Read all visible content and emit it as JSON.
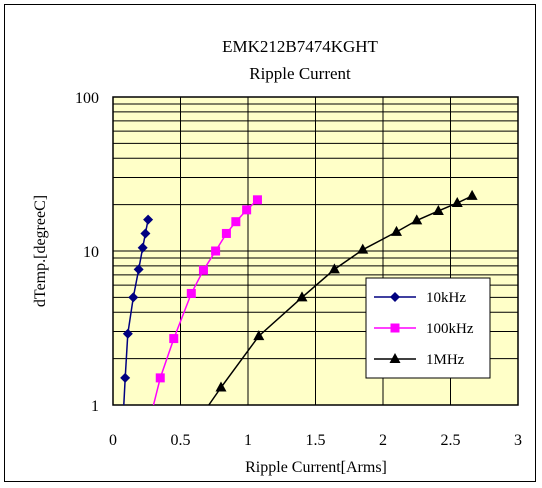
{
  "chart_data": {
    "type": "line",
    "title": "EMK212B7474KGHT",
    "subtitle": "Ripple Current",
    "xlabel": "Ripple Current[Arms]",
    "ylabel": "dTemp.[degreeC]",
    "xlim": [
      0,
      3
    ],
    "ylim": [
      1,
      100
    ],
    "yscale": "log",
    "x_ticks": [
      "0",
      "0.5",
      "1",
      "1.5",
      "2",
      "2.5",
      "3"
    ],
    "y_ticks": [
      "1",
      "10",
      "100"
    ],
    "grid": true,
    "legend_position": "right-middle",
    "plot_background": "#ffffc8",
    "series": [
      {
        "name": "10kHz",
        "color": "#000080",
        "marker": "diamond",
        "points": [
          [
            0.09,
            1.5
          ],
          [
            0.11,
            2.9
          ],
          [
            0.15,
            5.0
          ],
          [
            0.19,
            7.6
          ],
          [
            0.22,
            10.5
          ],
          [
            0.24,
            13.0
          ],
          [
            0.26,
            16.0
          ]
        ],
        "curve_start": [
          0.08,
          1.0
        ]
      },
      {
        "name": "100kHz",
        "color": "#ff00ff",
        "marker": "square",
        "points": [
          [
            0.35,
            1.5
          ],
          [
            0.45,
            2.7
          ],
          [
            0.58,
            5.3
          ],
          [
            0.67,
            7.5
          ],
          [
            0.76,
            10.0
          ],
          [
            0.84,
            13.0
          ],
          [
            0.91,
            15.5
          ],
          [
            0.99,
            18.5
          ],
          [
            1.07,
            21.5
          ]
        ],
        "curve_start": [
          0.3,
          1.0
        ]
      },
      {
        "name": "1MHz",
        "color": "#000000",
        "marker": "triangle",
        "points": [
          [
            0.8,
            1.3
          ],
          [
            1.08,
            2.8
          ],
          [
            1.4,
            5.0
          ],
          [
            1.64,
            7.6
          ],
          [
            1.85,
            10.2
          ],
          [
            2.1,
            13.3
          ],
          [
            2.25,
            15.8
          ],
          [
            2.41,
            18.2
          ],
          [
            2.55,
            20.5
          ],
          [
            2.66,
            22.8
          ]
        ],
        "curve_start": [
          0.71,
          1.0
        ]
      }
    ]
  }
}
